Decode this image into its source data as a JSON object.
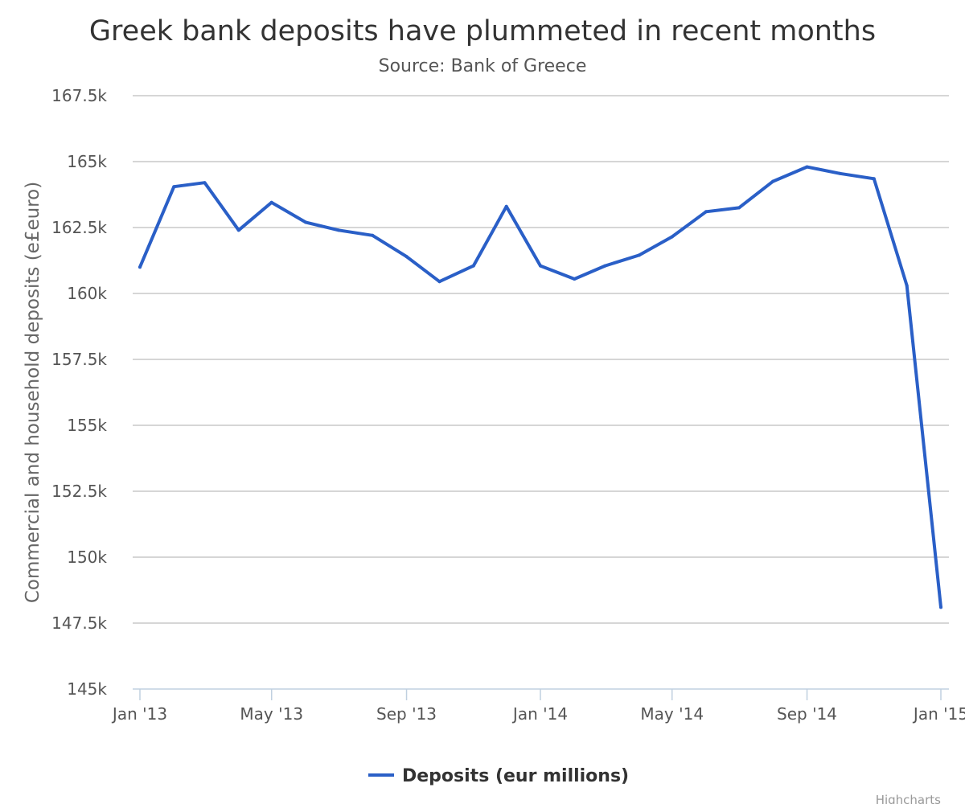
{
  "chart_data": {
    "type": "line",
    "title": "Greek bank deposits have plummeted in recent months",
    "subtitle": "Source: Bank of Greece",
    "ylabel": "Commercial and household deposits (e£euro)",
    "xlabel": "",
    "ylim": [
      145000,
      167500
    ],
    "y_ticks": [
      145000,
      147500,
      150000,
      152500,
      155000,
      157500,
      160000,
      162500,
      165000,
      167500
    ],
    "y_tick_labels": [
      "145k",
      "147.5k",
      "150k",
      "152.5k",
      "155k",
      "157.5k",
      "160k",
      "162.5k",
      "165k",
      "167.5k"
    ],
    "x_range": [
      "2013-01-01",
      "2015-01-01"
    ],
    "x_ticks": [
      "2013-01-01",
      "2013-05-01",
      "2013-09-01",
      "2014-01-01",
      "2014-05-01",
      "2014-09-01",
      "2015-01-01"
    ],
    "x_tick_labels": [
      "Jan '13",
      "May '13",
      "Sep '13",
      "Jan '14",
      "May '14",
      "Sep '14",
      "Jan '15"
    ],
    "grid": true,
    "legend": "bottom-center",
    "colors": {
      "series": "#2a5fc7",
      "grid": "#c8c8c8",
      "axis": "#c0d0e0"
    },
    "series": [
      {
        "name": "Deposits (eur millions)",
        "x": [
          "2013-01-01",
          "2013-02-01",
          "2013-03-01",
          "2013-04-01",
          "2013-05-01",
          "2013-06-01",
          "2013-07-01",
          "2013-08-01",
          "2013-09-01",
          "2013-10-01",
          "2013-11-01",
          "2013-12-01",
          "2014-01-01",
          "2014-02-01",
          "2014-03-01",
          "2014-04-01",
          "2014-05-01",
          "2014-06-01",
          "2014-07-01",
          "2014-08-01",
          "2014-09-01",
          "2014-10-01",
          "2014-11-01",
          "2014-12-01",
          "2015-01-01"
        ],
        "values": [
          161000,
          164050,
          164200,
          162400,
          163450,
          162700,
          162400,
          162200,
          161400,
          160450,
          161050,
          163300,
          161050,
          160550,
          161050,
          161450,
          162150,
          163100,
          163250,
          164250,
          164800,
          164550,
          164350,
          160300,
          148100
        ]
      }
    ]
  },
  "credit": "Highcharts"
}
